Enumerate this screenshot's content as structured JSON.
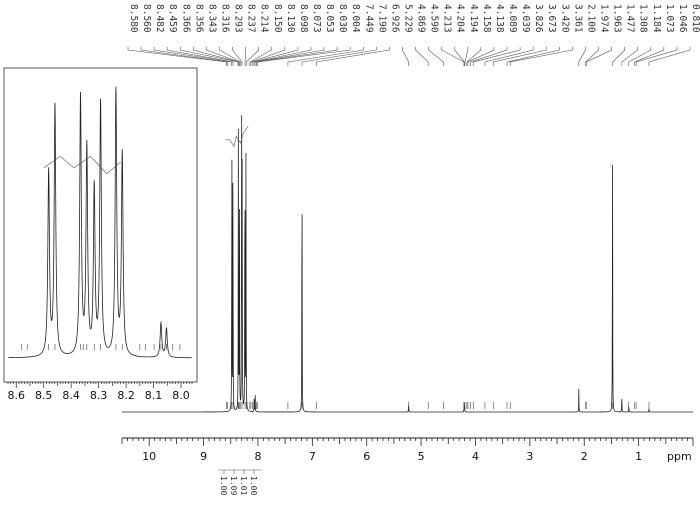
{
  "chart_data": [
    {
      "type": "line",
      "xlabel": "ppm",
      "xlim": [
        10.5,
        0.0
      ],
      "x_ticks": [
        "10",
        "9",
        "8",
        "7",
        "6",
        "5",
        "4",
        "3",
        "2",
        "1"
      ],
      "peak_labels": [
        "8.580",
        "8.560",
        "8.482",
        "8.459",
        "8.366",
        "8.356",
        "8.343",
        "8.316",
        "8.293",
        "8.237",
        "8.214",
        "8.150",
        "8.130",
        "8.098",
        "8.073",
        "8.053",
        "8.030",
        "8.004",
        "7.449",
        "7.190",
        "6.926",
        "5.229",
        "4.869",
        "4.590",
        "4.213",
        "4.204",
        "4.194",
        "4.158",
        "4.138",
        "4.089",
        "4.039",
        "3.826",
        "3.673",
        "3.420",
        "3.361",
        "2.100",
        "1.974",
        "1.963",
        "1.477",
        "1.308",
        "1.184",
        "1.073",
        "1.046",
        "0.810"
      ],
      "peaks": [
        {
          "x": 8.48,
          "height": 0.93
        },
        {
          "x": 8.46,
          "height": 0.84
        },
        {
          "x": 8.36,
          "height": 0.89
        },
        {
          "x": 8.34,
          "height": 0.74
        },
        {
          "x": 8.3,
          "height": 0.89
        },
        {
          "x": 8.29,
          "height": 0.74
        },
        {
          "x": 8.24,
          "height": 0.92
        },
        {
          "x": 8.22,
          "height": 0.81
        },
        {
          "x": 8.07,
          "height": 0.06
        },
        {
          "x": 8.05,
          "height": 0.05
        },
        {
          "x": 7.19,
          "height": 0.93
        },
        {
          "x": 5.23,
          "height": 0.03
        },
        {
          "x": 4.21,
          "height": 0.02
        },
        {
          "x": 4.2,
          "height": 0.02
        },
        {
          "x": 2.1,
          "height": 0.07
        },
        {
          "x": 1.48,
          "height": 0.93
        },
        {
          "x": 1.31,
          "height": 0.06
        },
        {
          "x": 1.18,
          "height": 0.02
        },
        {
          "x": 0.81,
          "height": 0.01
        }
      ],
      "integrals": [
        "1.00",
        "1.09",
        "1.01",
        "1.00"
      ]
    },
    {
      "type": "line",
      "xlim": [
        8.63,
        7.96
      ],
      "x_ticks": [
        "8.6",
        "8.5",
        "8.4",
        "8.3",
        "8.2",
        "8.1",
        "8.0"
      ],
      "peaks": [
        {
          "x": 8.482,
          "height": 0.64
        },
        {
          "x": 8.459,
          "height": 0.87
        },
        {
          "x": 8.366,
          "height": 0.9
        },
        {
          "x": 8.343,
          "height": 0.72
        },
        {
          "x": 8.316,
          "height": 0.58
        },
        {
          "x": 8.293,
          "height": 0.88
        },
        {
          "x": 8.237,
          "height": 0.92
        },
        {
          "x": 8.214,
          "height": 0.7
        },
        {
          "x": 8.073,
          "height": 0.12
        },
        {
          "x": 8.053,
          "height": 0.1
        }
      ]
    }
  ]
}
